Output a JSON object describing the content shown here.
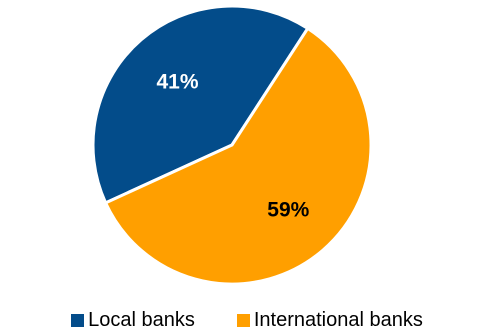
{
  "chart_data": {
    "type": "pie",
    "categories": [
      "Local banks",
      "International banks"
    ],
    "values": [
      41,
      59
    ],
    "data_labels": [
      "41%",
      "59%"
    ],
    "label_colors": [
      "#ffffff",
      "#000000"
    ],
    "colors": [
      "#034c8a",
      "#ff9f00"
    ],
    "title": "",
    "legend": "bottom",
    "start_angle": "first slice ends at about 1 o'clock, running counter-clockwise from there"
  }
}
